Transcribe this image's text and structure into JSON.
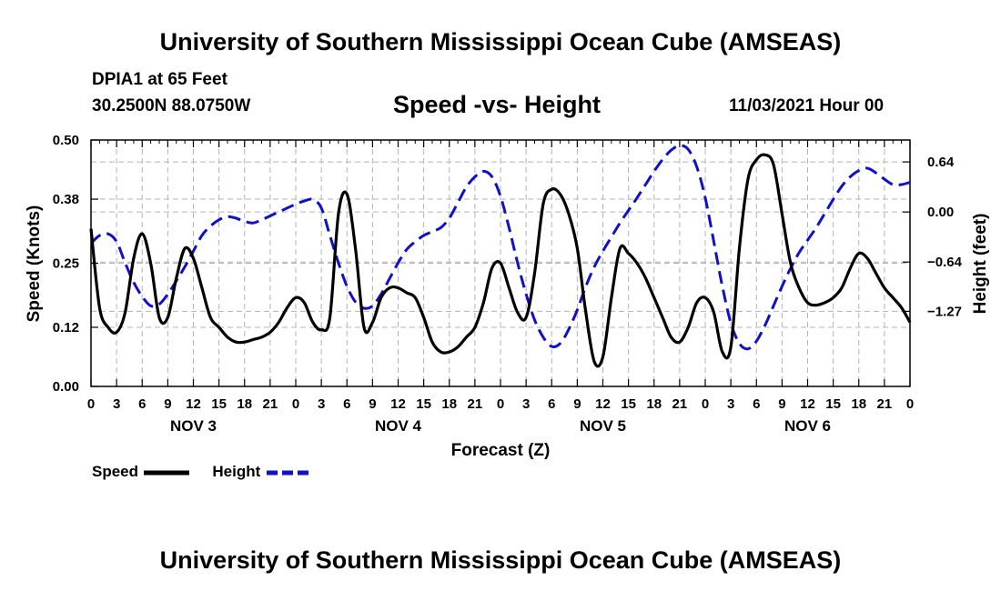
{
  "page": {
    "main_title": "University of Southern Mississippi Ocean Cube (AMSEAS)",
    "footer_title": "University of Southern Mississippi Ocean Cube (AMSEAS)",
    "station": "DPIA1 at 65 Feet",
    "coords": "30.2500N  88.0750W",
    "run_time": "11/03/2021 Hour 00"
  },
  "colors": {
    "speed": "#000000",
    "height": "#1010c8",
    "grid": "#b4b4b4"
  },
  "chart_data": {
    "type": "line",
    "title": "Speed -vs- Height",
    "xlabel": "Forecast (Z)",
    "ylabel": "Speed (Knots)",
    "y2label": "Height (feet)",
    "xlim": [
      0,
      96
    ],
    "ylim": [
      0,
      0.5
    ],
    "y2lim": [
      -2.23,
      0.92
    ],
    "yticks": [
      0.0,
      0.12,
      0.25,
      0.38,
      0.5
    ],
    "ytick_labels": [
      "0.00",
      "0.12",
      "0.25",
      "0.38",
      "0.50"
    ],
    "y2ticks": [
      -1.27,
      -0.64,
      0.0,
      0.64
    ],
    "y2tick_labels": [
      "−1.27",
      "−0.64",
      "0.00",
      "0.64"
    ],
    "xtick_labels": [
      "0",
      "3",
      "6",
      "9",
      "12",
      "15",
      "18",
      "21",
      "0",
      "3",
      "6",
      "9",
      "12",
      "15",
      "18",
      "21",
      "0",
      "3",
      "6",
      "9",
      "12",
      "15",
      "18",
      "21",
      "0",
      "3",
      "6",
      "9",
      "12",
      "15",
      "18",
      "21",
      "0"
    ],
    "day_labels": [
      "NOV 3",
      "NOV 4",
      "NOV 5",
      "NOV 6"
    ],
    "legend": [
      {
        "name": "Speed",
        "style": "solid"
      },
      {
        "name": "Height",
        "style": "dashed"
      }
    ],
    "series": [
      {
        "name": "Speed",
        "axis": "left",
        "x": [
          0,
          1,
          2,
          3,
          4,
          5,
          6,
          7,
          8,
          9,
          10,
          11,
          12,
          13,
          14,
          15,
          16,
          17,
          18,
          19,
          20,
          21,
          22,
          23,
          24,
          25,
          26,
          27,
          28,
          29,
          30,
          31,
          32,
          33,
          34,
          35,
          36,
          37,
          38,
          39,
          40,
          41,
          42,
          43,
          44,
          45,
          46,
          47,
          48,
          49,
          50,
          51,
          52,
          53,
          54,
          55,
          56,
          57,
          58,
          59,
          60,
          61,
          62,
          63,
          64,
          65,
          66,
          67,
          68,
          69,
          70,
          71,
          72,
          73,
          74,
          75,
          76,
          77,
          78,
          79,
          80,
          81,
          82,
          83,
          84,
          85,
          86,
          87,
          88,
          89,
          90,
          91,
          92,
          93,
          94,
          95,
          96
        ],
        "values": [
          0.32,
          0.16,
          0.12,
          0.11,
          0.15,
          0.26,
          0.31,
          0.25,
          0.14,
          0.14,
          0.22,
          0.28,
          0.26,
          0.2,
          0.14,
          0.12,
          0.1,
          0.09,
          0.09,
          0.095,
          0.1,
          0.11,
          0.13,
          0.16,
          0.18,
          0.17,
          0.13,
          0.115,
          0.14,
          0.35,
          0.39,
          0.28,
          0.12,
          0.13,
          0.18,
          0.2,
          0.2,
          0.19,
          0.18,
          0.14,
          0.09,
          0.07,
          0.07,
          0.08,
          0.1,
          0.12,
          0.17,
          0.24,
          0.25,
          0.2,
          0.15,
          0.14,
          0.23,
          0.37,
          0.4,
          0.39,
          0.35,
          0.28,
          0.15,
          0.05,
          0.06,
          0.18,
          0.28,
          0.27,
          0.25,
          0.22,
          0.18,
          0.14,
          0.1,
          0.09,
          0.12,
          0.17,
          0.18,
          0.15,
          0.07,
          0.08,
          0.28,
          0.42,
          0.46,
          0.47,
          0.45,
          0.35,
          0.25,
          0.2,
          0.17,
          0.165,
          0.17,
          0.18,
          0.2,
          0.24,
          0.27,
          0.26,
          0.23,
          0.2,
          0.18,
          0.16,
          0.13
        ]
      },
      {
        "name": "Height",
        "axis": "right",
        "x": [
          0,
          1,
          2,
          3,
          4,
          5,
          6,
          7,
          8,
          9,
          10,
          11,
          12,
          13,
          14,
          15,
          16,
          17,
          18,
          19,
          20,
          21,
          22,
          23,
          24,
          25,
          26,
          27,
          28,
          29,
          30,
          31,
          32,
          33,
          34,
          35,
          36,
          37,
          38,
          39,
          40,
          41,
          42,
          43,
          44,
          45,
          46,
          47,
          48,
          49,
          50,
          51,
          52,
          53,
          54,
          55,
          56,
          57,
          58,
          59,
          60,
          61,
          62,
          63,
          64,
          65,
          66,
          67,
          68,
          69,
          70,
          71,
          72,
          73,
          74,
          75,
          76,
          77,
          78,
          79,
          80,
          81,
          82,
          83,
          84,
          85,
          86,
          87,
          88,
          89,
          90,
          91,
          92,
          93,
          94,
          95,
          96
        ],
        "values": [
          -0.4,
          -0.3,
          -0.28,
          -0.38,
          -0.65,
          -0.9,
          -1.08,
          -1.2,
          -1.18,
          -1.05,
          -0.88,
          -0.7,
          -0.5,
          -0.3,
          -0.18,
          -0.1,
          -0.06,
          -0.08,
          -0.12,
          -0.14,
          -0.1,
          -0.05,
          0.0,
          0.05,
          0.1,
          0.14,
          0.16,
          0.05,
          -0.3,
          -0.65,
          -0.95,
          -1.15,
          -1.23,
          -1.2,
          -1.05,
          -0.85,
          -0.65,
          -0.48,
          -0.38,
          -0.3,
          -0.25,
          -0.2,
          -0.08,
          0.12,
          0.32,
          0.45,
          0.52,
          0.45,
          0.2,
          -0.2,
          -0.65,
          -1.05,
          -1.38,
          -1.6,
          -1.72,
          -1.68,
          -1.5,
          -1.25,
          -0.95,
          -0.7,
          -0.5,
          -0.32,
          -0.14,
          0.02,
          0.18,
          0.35,
          0.52,
          0.67,
          0.79,
          0.85,
          0.8,
          0.58,
          0.18,
          -0.38,
          -0.95,
          -1.42,
          -1.68,
          -1.75,
          -1.65,
          -1.45,
          -1.2,
          -0.95,
          -0.72,
          -0.52,
          -0.36,
          -0.2,
          -0.02,
          0.16,
          0.33,
          0.45,
          0.53,
          0.56,
          0.5,
          0.42,
          0.35,
          0.35,
          0.38
        ]
      }
    ]
  }
}
